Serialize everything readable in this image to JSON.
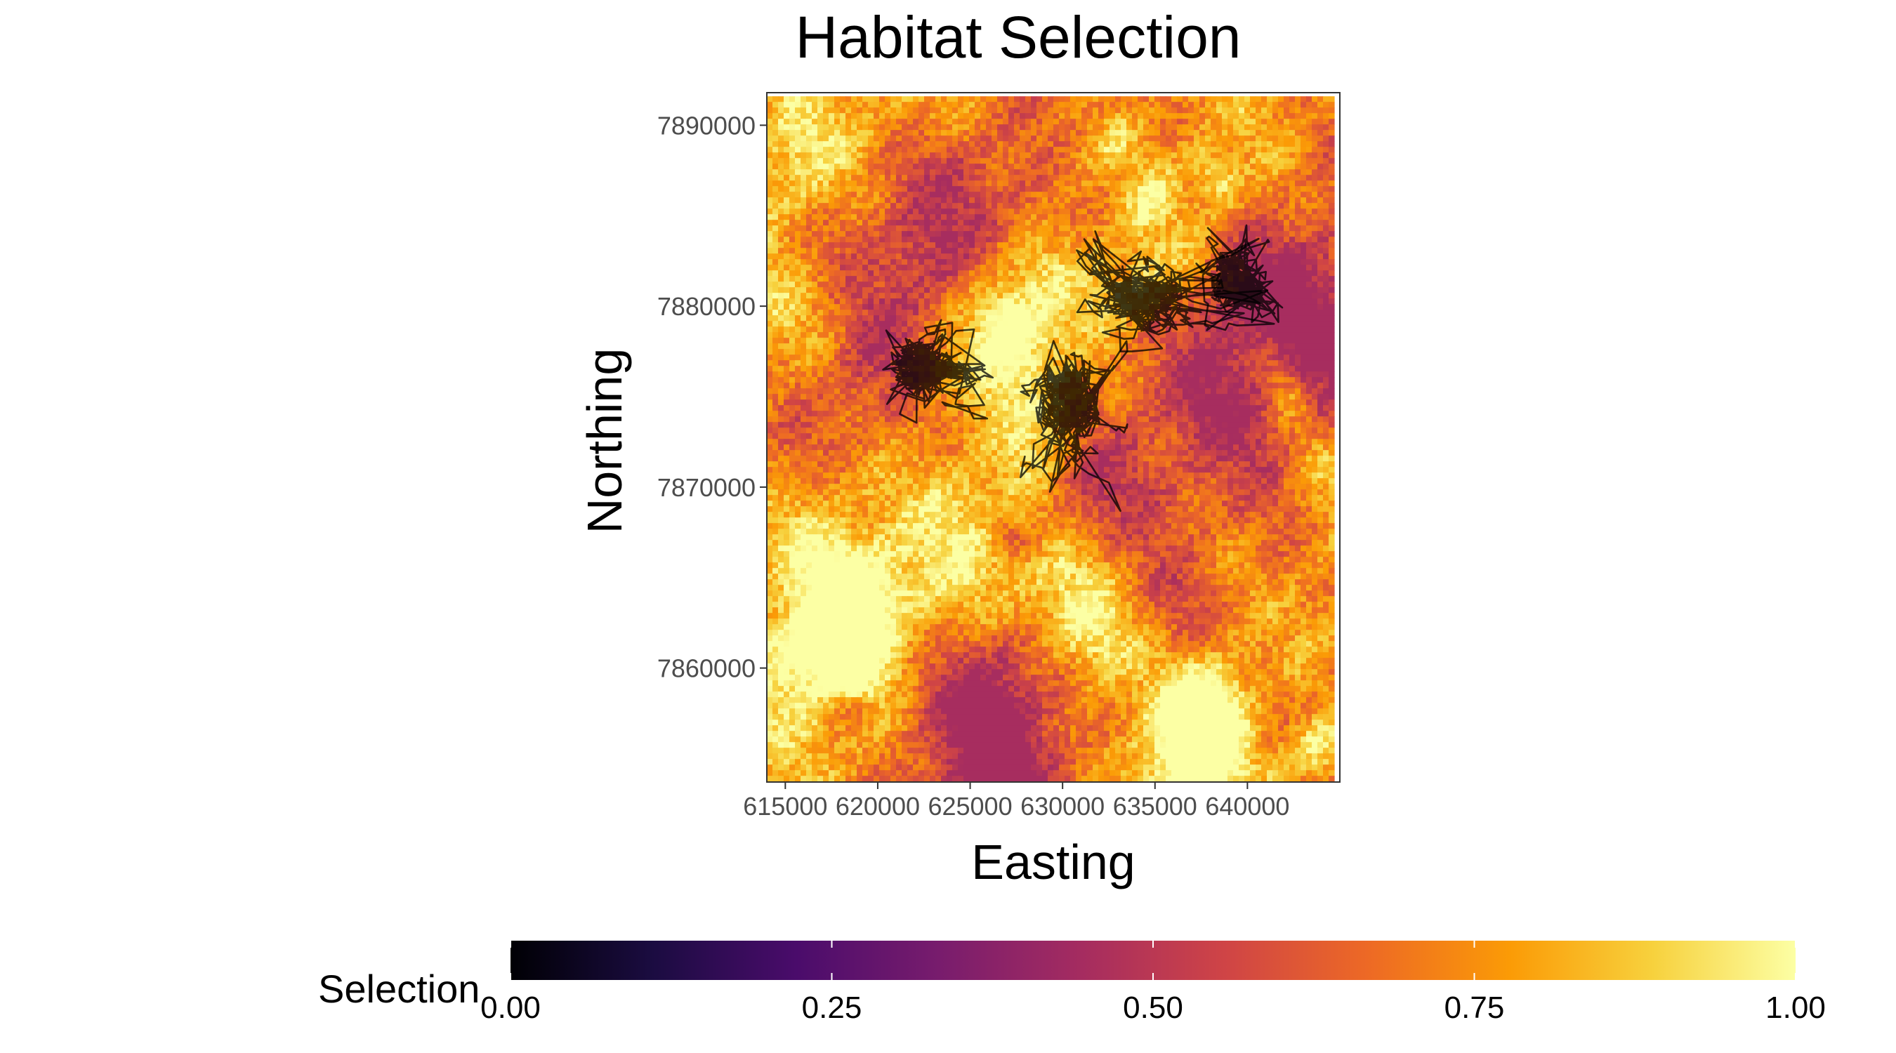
{
  "chart_data": {
    "type": "heatmap",
    "title": "Habitat Selection",
    "xlabel": "Easting",
    "ylabel": "Northing",
    "x_ticks": [
      615000,
      620000,
      625000,
      630000,
      635000,
      640000
    ],
    "y_ticks": [
      7860000,
      7870000,
      7880000,
      7890000
    ],
    "xlim": [
      614000,
      645000
    ],
    "ylim": [
      7853700,
      7891800
    ],
    "raster_extent": {
      "x": [
        614000,
        644500
      ],
      "y": [
        7854000,
        7891600
      ]
    },
    "grid": false,
    "colorscale": {
      "name": "inferno",
      "range": [
        0,
        1
      ],
      "stops": [
        "#000004",
        "#1b0c41",
        "#4a0c6b",
        "#781c6d",
        "#a52c60",
        "#cf4446",
        "#ed6925",
        "#fb9b06",
        "#f7d13d",
        "#fcffa4"
      ]
    },
    "raster_value_range": [
      0.45,
      1.0
    ],
    "legend": {
      "title": "Selection",
      "position": "bottom",
      "ticks": [
        "0.00",
        "0.25",
        "0.50",
        "0.75",
        "1.00"
      ],
      "tick_values": [
        0,
        0.25,
        0.5,
        0.75,
        1
      ]
    },
    "overlay": {
      "type": "path",
      "description_color": "#000000",
      "clusters": [
        {
          "center": [
            622500,
            7876400
          ],
          "spread": [
            1800,
            1200
          ],
          "range": [
            [
              620000,
              627000
            ],
            [
              7873500,
              7879300
            ]
          ]
        },
        {
          "center": [
            630300,
            7875200
          ],
          "spread": [
            1600,
            2200
          ],
          "range": [
            [
              627500,
              633500
            ],
            [
              7867200,
              7879200
            ]
          ]
        },
        {
          "center": [
            634000,
            7880200
          ],
          "spread": [
            1800,
            1400
          ],
          "range": [
            [
              630500,
              641500
            ],
            [
              7877500,
              7884900
            ]
          ]
        },
        {
          "center": [
            639500,
            7881300
          ],
          "spread": [
            1400,
            1300
          ],
          "range": [
            [
              636500,
              642000
            ],
            [
              7878500,
              7884900
            ]
          ]
        }
      ]
    }
  }
}
